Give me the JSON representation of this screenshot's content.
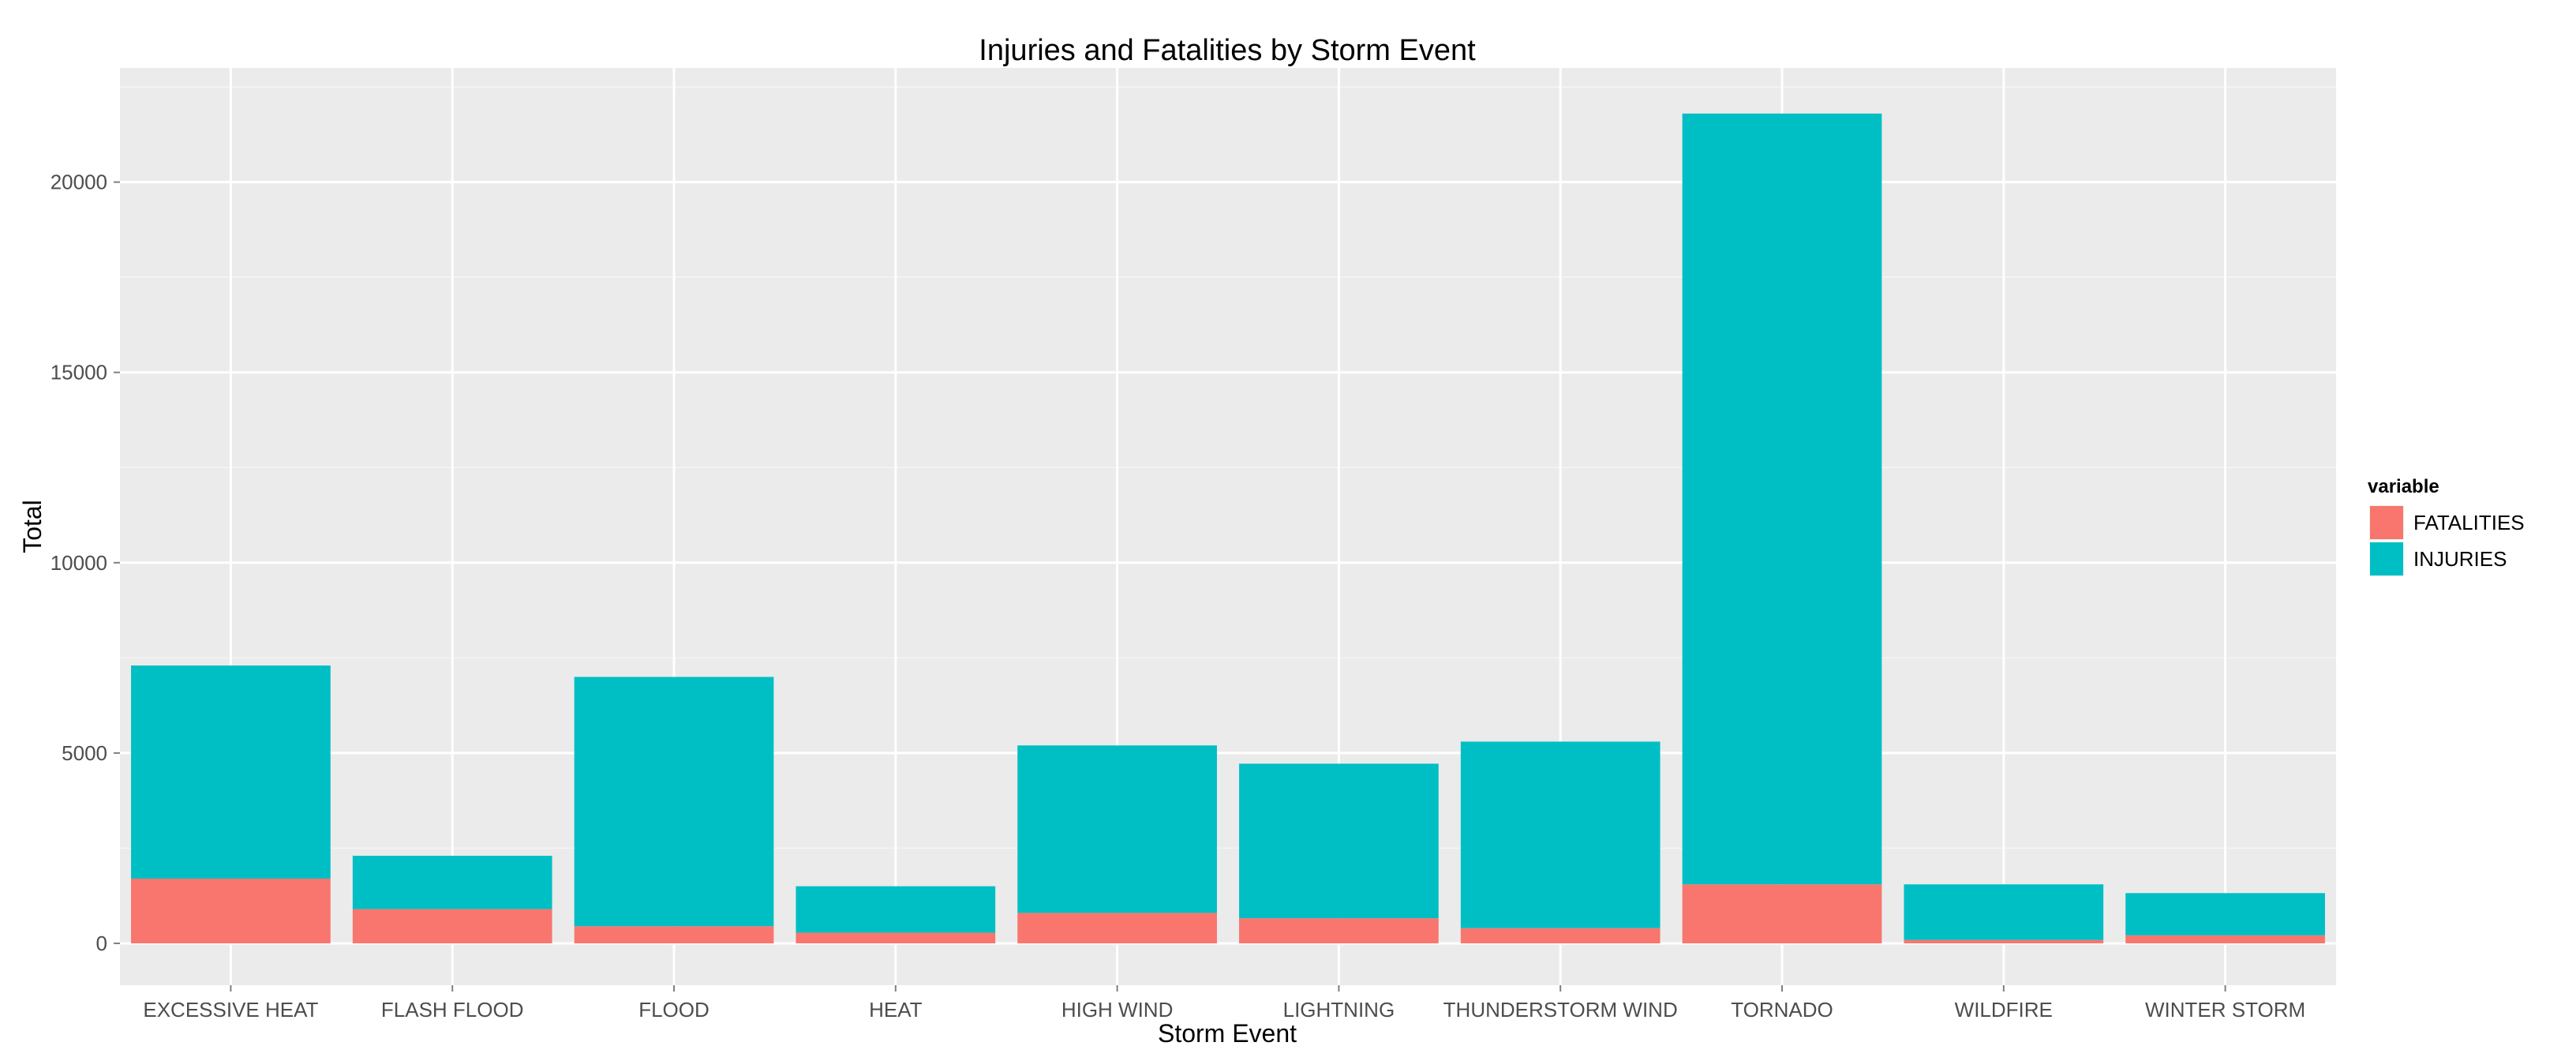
{
  "chart_data": {
    "type": "bar",
    "stacked": true,
    "title": "Injuries and Fatalities by Storm Event",
    "xlabel": "Storm Event",
    "ylabel": "Total",
    "ylim": [
      -1100,
      23000
    ],
    "yticks": [
      0,
      5000,
      10000,
      15000,
      20000
    ],
    "grid": true,
    "legend_position": "right",
    "legend_title": "variable",
    "categories": [
      "EXCESSIVE HEAT",
      "FLASH FLOOD",
      "FLOOD",
      "HEAT",
      "HIGH WIND",
      "LIGHTNING",
      "THUNDERSTORM WIND",
      "TORNADO",
      "WILDFIRE",
      "WINTER STORM"
    ],
    "series": [
      {
        "name": "FATALITIES",
        "color": "#F8766D",
        "values": [
          1700,
          900,
          450,
          280,
          800,
          660,
          400,
          1550,
          90,
          210
        ]
      },
      {
        "name": "INJURIES",
        "color": "#00BFC4",
        "values": [
          5600,
          1400,
          6550,
          1220,
          4400,
          4060,
          4900,
          20250,
          1460,
          1110
        ]
      }
    ]
  },
  "colors": {
    "panel_background": "#EBEBEB",
    "grid_major": "#FFFFFF",
    "grid_minor": "#F5F5F5",
    "tick_text": "#4D4D4D"
  }
}
